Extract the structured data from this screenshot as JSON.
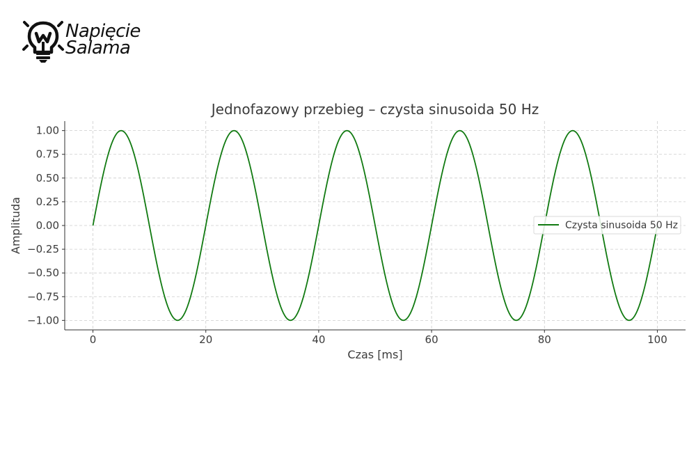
{
  "logo": {
    "text_line1": "Napięcie",
    "text_line2": "Salama",
    "icon": "lightbulb-w-icon"
  },
  "chart_data": {
    "type": "line",
    "title": "Jednofazowy przebieg – czysta sinusoida 50 Hz",
    "xlabel": "Czas [ms]",
    "ylabel": "Amplituda",
    "xlim": [
      -5,
      105
    ],
    "ylim": [
      -1.1,
      1.1
    ],
    "xticks": [
      0,
      20,
      40,
      60,
      80,
      100
    ],
    "yticks": [
      -1.0,
      -0.75,
      -0.5,
      -0.25,
      0.0,
      0.25,
      0.5,
      0.75,
      1.0
    ],
    "xtick_labels": [
      "0",
      "20",
      "40",
      "60",
      "80",
      "100"
    ],
    "ytick_labels": [
      "−1.00",
      "−0.75",
      "−0.50",
      "−0.25",
      "0.00",
      "0.25",
      "0.50",
      "0.75",
      "1.00"
    ],
    "grid": true,
    "legend_position": "right",
    "series": [
      {
        "name": "Czysta sinusoida 50 Hz",
        "color": "#117a11",
        "x": [
          0,
          2.5,
          5,
          7.5,
          10,
          12.5,
          15,
          17.5,
          20,
          22.5,
          25,
          27.5,
          30,
          32.5,
          35,
          37.5,
          40,
          42.5,
          45,
          47.5,
          50,
          52.5,
          55,
          57.5,
          60,
          62.5,
          65,
          67.5,
          70,
          72.5,
          75,
          77.5,
          80,
          82.5,
          85,
          87.5,
          90,
          92.5,
          95,
          97.5,
          100
        ],
        "y": [
          0,
          0.707,
          1,
          0.707,
          0,
          -0.707,
          -1,
          -0.707,
          0,
          0.707,
          1,
          0.707,
          0,
          -0.707,
          -1,
          -0.707,
          0,
          0.707,
          1,
          0.707,
          0,
          -0.707,
          -1,
          -0.707,
          0,
          0.707,
          1,
          0.707,
          0,
          -0.707,
          -1,
          -0.707,
          0,
          0.707,
          1,
          0.707,
          0,
          -0.707,
          -1,
          -0.707,
          0
        ]
      }
    ]
  }
}
